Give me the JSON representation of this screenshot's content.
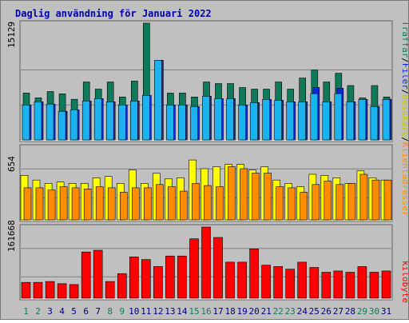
{
  "chart_data": {
    "type": "bar",
    "title": "Daglig användning för Januari 2022",
    "x": [
      "1",
      "2",
      "3",
      "4",
      "5",
      "6",
      "7",
      "8",
      "9",
      "10",
      "11",
      "12",
      "13",
      "14",
      "15",
      "16",
      "17",
      "18",
      "19",
      "20",
      "21",
      "22",
      "23",
      "24",
      "25",
      "26",
      "27",
      "28",
      "29",
      "30",
      "31"
    ],
    "weekend_days": [
      "1",
      "2",
      "8",
      "9",
      "15",
      "16",
      "22",
      "23",
      "29",
      "30"
    ],
    "panels": [
      {
        "id": "top",
        "y_max_label": "15129",
        "ylim": [
          0,
          15129
        ],
        "series": [
          {
            "name": "Träffar",
            "color": "#0f7a5a",
            "values": [
              6070,
              5450,
              6270,
              5970,
              5260,
              7510,
              6580,
              7510,
              5560,
              7630,
              15129,
              6790,
              6070,
              6070,
              5560,
              7510,
              7310,
              7310,
              6790,
              6580,
              6580,
              7510,
              6580,
              8020,
              9050,
              7510,
              8640,
              7050,
              5450,
              7050,
              5560
            ]
          },
          {
            "name": "Filer",
            "color": "#0a2ad8",
            "values": [
              4530,
              4940,
              4640,
              3710,
              3910,
              5050,
              5360,
              4940,
              4530,
              5050,
              5770,
              10330,
              4530,
              4530,
              4330,
              5670,
              5360,
              5360,
              4530,
              4840,
              5250,
              5150,
              4940,
              4940,
              6800,
              4940,
              6700,
              4940,
              5250,
              4330,
              5250
            ]
          },
          {
            "name": "Besökare",
            "color": "#1ab3f0",
            "values": [
              4530,
              4940,
              4640,
              3710,
              3910,
              5050,
              5360,
              4940,
              4530,
              5050,
              5770,
              10330,
              4530,
              4530,
              4330,
              5670,
              5360,
              5360,
              4530,
              4840,
              5250,
              5150,
              4940,
              4940,
              6000,
              4940,
              6000,
              4940,
              5250,
              4330,
              5250
            ]
          }
        ]
      },
      {
        "id": "middle",
        "y_max_label": "654",
        "ylim": [
          0,
          654
        ],
        "series": [
          {
            "name": "Besökare",
            "color": "#ffff00",
            "values": [
              400,
              358,
              328,
              340,
              328,
              328,
              378,
              390,
              328,
              450,
              328,
              418,
              368,
              378,
              538,
              460,
              478,
              498,
              498,
              448,
              478,
              358,
              328,
              298,
              410,
              400,
              378,
              328,
              440,
              378,
              358
            ]
          },
          {
            "name": "Klientadresser",
            "color": "#ff8c00",
            "values": [
              288,
              288,
              268,
              298,
              288,
              278,
              298,
              288,
              248,
              288,
              288,
              318,
              298,
              258,
              328,
              308,
              298,
              478,
              460,
              420,
              420,
              298,
              288,
              248,
              318,
              348,
              318,
              328,
              410,
              358,
              358
            ]
          }
        ]
      },
      {
        "id": "bottom",
        "y_max_label": "161668",
        "ylim": [
          0,
          161668
        ],
        "series": [
          {
            "name": "kilobyte",
            "color": "#ff0000",
            "values": [
              36000,
              36000,
              38000,
              33000,
              31000,
              105000,
              109000,
              38000,
              56000,
              94000,
              88000,
              72000,
              96000,
              96000,
              135000,
              161668,
              138000,
              82000,
              82000,
              112000,
              75000,
              72000,
              66000,
              82000,
              70000,
              59000,
              62000,
              59000,
              72000,
              59000,
              62000
            ]
          }
        ]
      }
    ],
    "right_labels": [
      {
        "text": "Träffar",
        "color": "#0f7a5a"
      },
      {
        "text": "/",
        "color": "#000000"
      },
      {
        "text": "Filer",
        "color": "#0a2ad8"
      },
      {
        "text": "/",
        "color": "#000000"
      },
      {
        "text": "Besökare",
        "color": "#c8c800"
      },
      {
        "text": "/",
        "color": "#000000"
      },
      {
        "text": "Klientadresser",
        "color": "#ff8c00"
      },
      {
        "text": "kilobyte",
        "color": "#ff0000"
      }
    ],
    "colors": {
      "title": "#0000aa",
      "weekday_label": "#000080",
      "weekend_label": "#0f7a5a",
      "background": "#c0c0c0",
      "grid": "#808080"
    }
  }
}
